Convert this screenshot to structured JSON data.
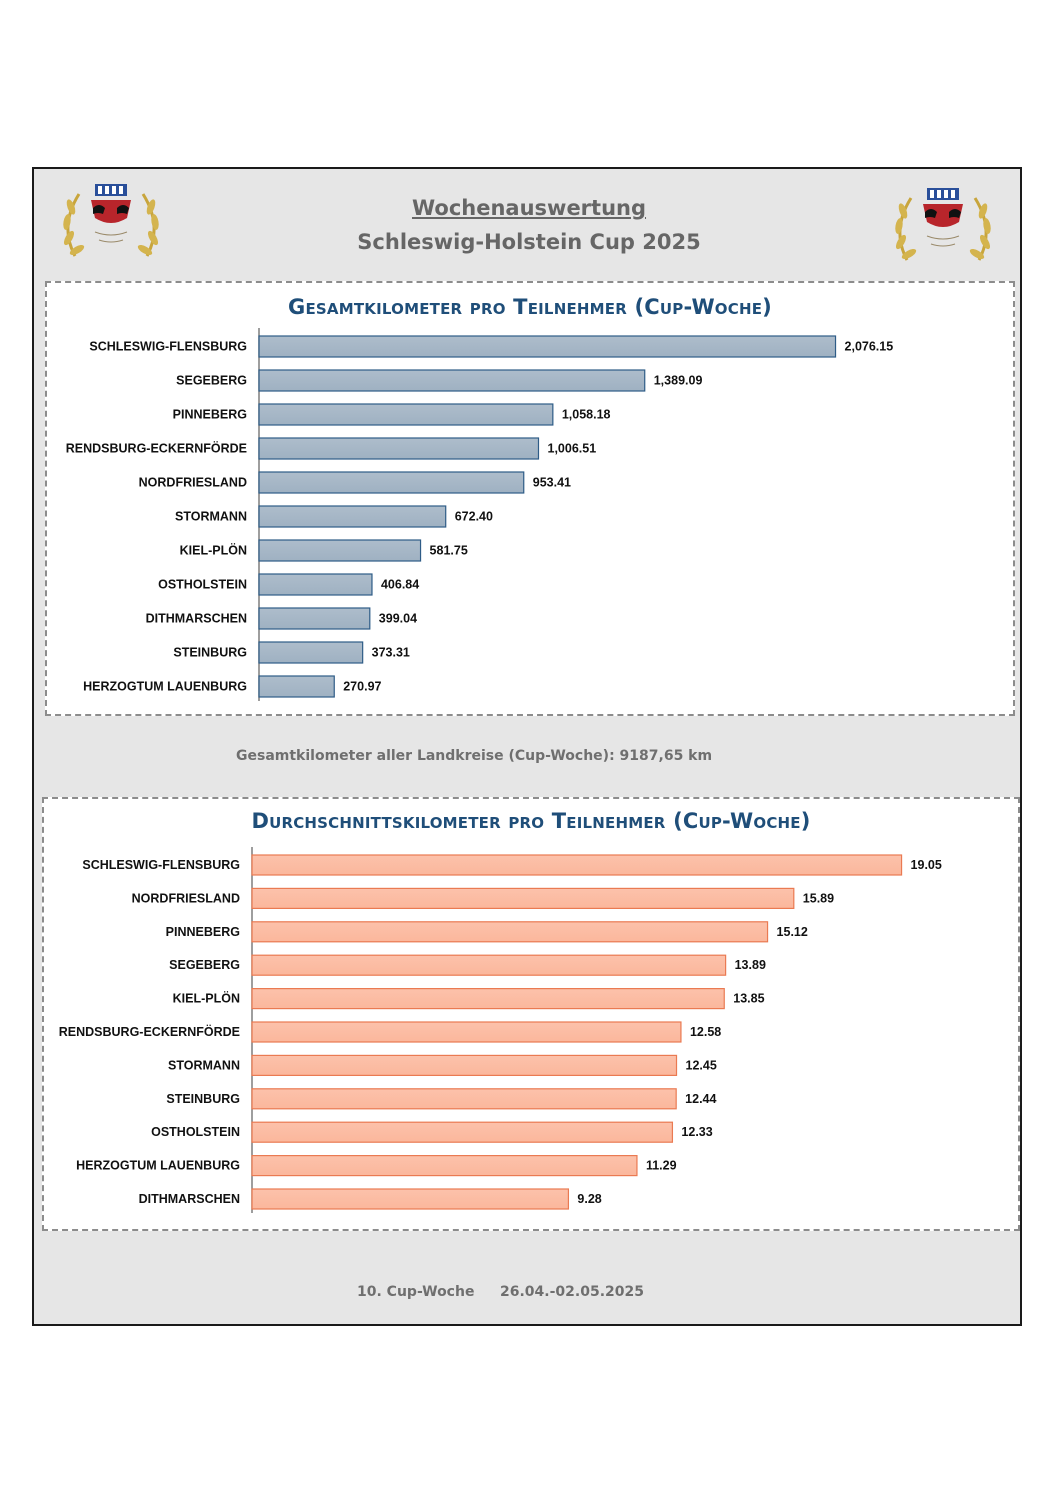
{
  "header": {
    "title": "Wochenauswertung",
    "subtitle": "Schleswig-Holstein Cup 2025"
  },
  "summary": {
    "text": "Gesamtkilometer aller Landkreise (Cup-Woche):  9187,65 km"
  },
  "footer": {
    "week": "10. Cup-Woche",
    "dates": "26.04.-02.05.2025"
  },
  "colors": {
    "chart1_bar": "#9fb1c2",
    "chart1_border": "#2e5c87",
    "chart2_bar": "#fbb79c",
    "chart2_border": "#ea7a52",
    "title": "#1f4e79"
  },
  "chart_data": [
    {
      "type": "bar",
      "orientation": "horizontal",
      "title": "Gesamtkilometer pro Teilnehmer (Cup-Woche)",
      "categories": [
        "SCHLESWIG-FLENSBURG",
        "SEGEBERG",
        "PINNEBERG",
        "RENDSBURG-ECKERNFÖRDE",
        "NORDFRIESLAND",
        "STORMANN",
        "KIEL-PLÖN",
        "OSTHOLSTEIN",
        "DITHMARSCHEN",
        "STEINBURG",
        "HERZOGTUM LAUENBURG"
      ],
      "values": [
        2076.15,
        1389.09,
        1058.18,
        1006.51,
        953.41,
        672.4,
        581.75,
        406.84,
        399.04,
        373.31,
        270.97
      ],
      "value_labels": [
        "2,076.15",
        "1,389.09",
        "1,058.18",
        "1,006.51",
        "953.41",
        "672.40",
        "581.75",
        "406.84",
        "399.04",
        "373.31",
        "270.97"
      ],
      "xlim": [
        0,
        2600
      ],
      "grid": false
    },
    {
      "type": "bar",
      "orientation": "horizontal",
      "title": "Durchschnittskilometer pro Teilnehmer (Cup-Woche)",
      "categories": [
        "SCHLESWIG-FLENSBURG",
        "NORDFRIESLAND",
        "PINNEBERG",
        "SEGEBERG",
        "KIEL-PLÖN",
        "RENDSBURG-ECKERNFÖRDE",
        "STORMANN",
        "STEINBURG",
        "OSTHOLSTEIN",
        "HERZOGTUM LAUENBURG",
        "DITHMARSCHEN"
      ],
      "values": [
        19.05,
        15.89,
        15.12,
        13.89,
        13.85,
        12.58,
        12.45,
        12.44,
        12.33,
        11.29,
        9.28
      ],
      "value_labels": [
        "19.05",
        "15.89",
        "15.12",
        "13.89",
        "13.85",
        "12.58",
        "12.45",
        "12.44",
        "12.33",
        "11.29",
        "9.28"
      ],
      "xlim": [
        0,
        20.5
      ],
      "grid": false
    }
  ]
}
